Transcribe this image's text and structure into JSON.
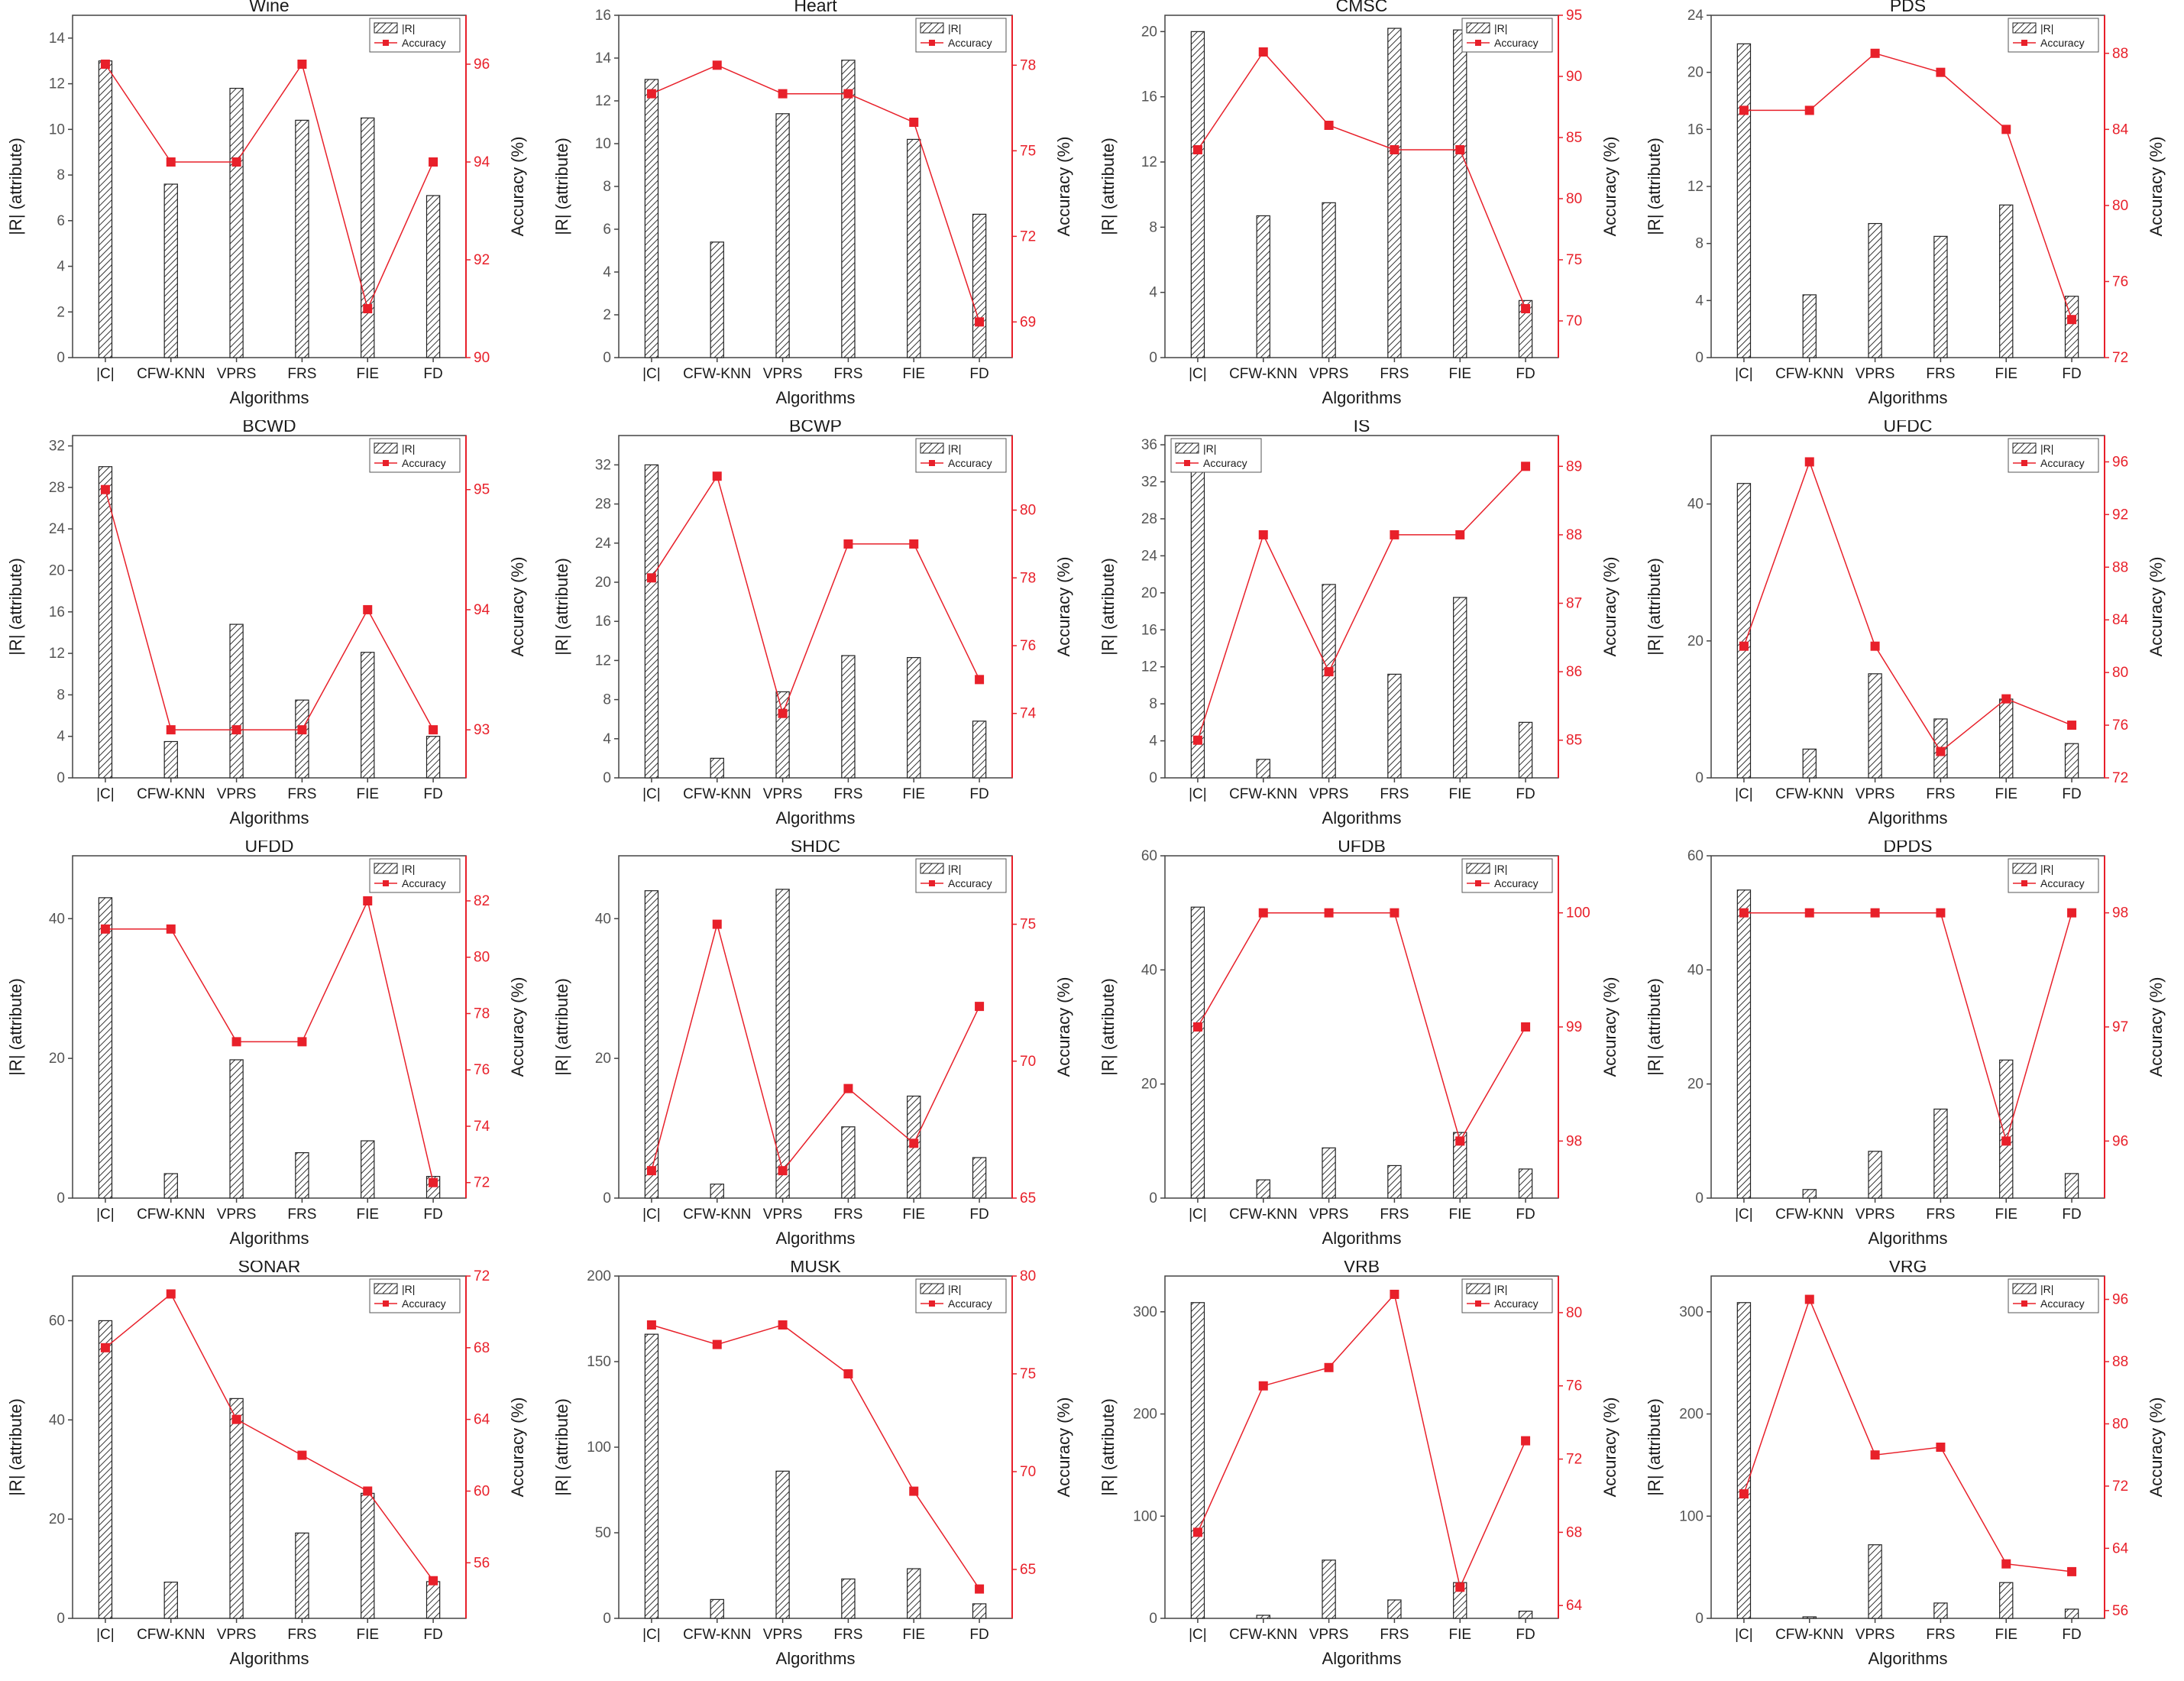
{
  "colors": {
    "bar_fill": "#d0d0d0",
    "bar_stroke": "#222222",
    "accuracy": "#e8202a",
    "axis": "#444444",
    "text": "#1a1a1a"
  },
  "common": {
    "categories": [
      "|C|",
      "CFW-KNN",
      "VPRS",
      "FRS",
      "FIE",
      "FD"
    ],
    "xlabel": "Algorithms",
    "ylabel_left": "|R| (attribute)",
    "ylabel_right": "Accuracy (%)",
    "legend_bar": "|R|",
    "legend_line": "Accuracy"
  },
  "chart_data": [
    {
      "type": "bar+line",
      "title": "Wine",
      "categories": [
        "|C|",
        "CFW-KNN",
        "VPRS",
        "FRS",
        "FIE",
        "FD"
      ],
      "series": [
        {
          "name": "|R|",
          "values": [
            13,
            7.6,
            11.8,
            10.4,
            10.5,
            7.1
          ]
        },
        {
          "name": "Accuracy",
          "values": [
            96,
            94,
            94,
            96,
            91,
            94
          ]
        }
      ],
      "ylim_left": [
        0,
        15
      ],
      "yticks_left": [
        0,
        2,
        4,
        6,
        8,
        10,
        12,
        14
      ],
      "ylim_right": [
        90,
        97
      ],
      "yticks_right": [
        90,
        92,
        94,
        96
      ],
      "legend": "top-right"
    },
    {
      "type": "bar+line",
      "title": "Heart",
      "categories": [
        "|C|",
        "CFW-KNN",
        "VPRS",
        "FRS",
        "FIE",
        "FD"
      ],
      "series": [
        {
          "name": "|R|",
          "values": [
            13,
            5.4,
            11.4,
            13.9,
            10.2,
            6.7
          ]
        },
        {
          "name": "Accuracy",
          "values": [
            77,
            78,
            77,
            77,
            76,
            69
          ]
        }
      ],
      "ylim_left": [
        0,
        16
      ],
      "yticks_left": [
        0,
        2,
        4,
        6,
        8,
        10,
        12,
        14,
        16
      ],
      "ylim_right": [
        67.75,
        79.75
      ],
      "yticks_right": [
        69,
        72,
        75,
        78
      ],
      "legend": "top-right"
    },
    {
      "type": "bar+line",
      "title": "CMSC",
      "categories": [
        "|C|",
        "CFW-KNN",
        "VPRS",
        "FRS",
        "FIE",
        "FD"
      ],
      "series": [
        {
          "name": "|R|",
          "values": [
            20,
            8.7,
            9.5,
            20.2,
            20.1,
            3.5
          ]
        },
        {
          "name": "Accuracy",
          "values": [
            84,
            92,
            86,
            84,
            84,
            71
          ]
        }
      ],
      "ylim_left": [
        0,
        21
      ],
      "yticks_left": [
        0,
        4,
        8,
        12,
        16,
        20
      ],
      "ylim_right": [
        67,
        95
      ],
      "yticks_right": [
        70,
        75,
        80,
        85,
        90,
        95
      ],
      "legend": "top-right"
    },
    {
      "type": "bar+line",
      "title": "PDS",
      "categories": [
        "|C|",
        "CFW-KNN",
        "VPRS",
        "FRS",
        "FIE",
        "FD"
      ],
      "series": [
        {
          "name": "|R|",
          "values": [
            22,
            4.4,
            9.4,
            8.5,
            10.7,
            4.3
          ]
        },
        {
          "name": "Accuracy",
          "values": [
            85,
            85,
            88,
            87,
            84,
            74
          ]
        }
      ],
      "ylim_left": [
        0,
        24
      ],
      "yticks_left": [
        0,
        4,
        8,
        12,
        16,
        20,
        24
      ],
      "ylim_right": [
        72,
        90
      ],
      "yticks_right": [
        72,
        76,
        80,
        84,
        88
      ],
      "legend": "top-right"
    },
    {
      "type": "bar+line",
      "title": "BCWD",
      "categories": [
        "|C|",
        "CFW-KNN",
        "VPRS",
        "FRS",
        "FIE",
        "FD"
      ],
      "series": [
        {
          "name": "|R|",
          "values": [
            30,
            3.5,
            14.8,
            7.5,
            12.1,
            4
          ]
        },
        {
          "name": "Accuracy",
          "values": [
            95,
            93,
            93,
            93,
            94,
            93
          ]
        }
      ],
      "ylim_left": [
        0,
        33
      ],
      "yticks_left": [
        0,
        4,
        8,
        12,
        16,
        20,
        24,
        28,
        32
      ],
      "ylim_right": [
        92.6,
        95.45
      ],
      "yticks_right": [
        93,
        94,
        95
      ],
      "legend": "top-right"
    },
    {
      "type": "bar+line",
      "title": "BCWP",
      "categories": [
        "|C|",
        "CFW-KNN",
        "VPRS",
        "FRS",
        "FIE",
        "FD"
      ],
      "series": [
        {
          "name": "|R|",
          "values": [
            32,
            2,
            8.8,
            12.5,
            12.3,
            5.8
          ]
        },
        {
          "name": "Accuracy",
          "values": [
            78,
            81,
            74,
            79,
            79,
            75
          ]
        }
      ],
      "ylim_left": [
        0,
        35
      ],
      "yticks_left": [
        0,
        4,
        8,
        12,
        16,
        20,
        24,
        28,
        32
      ],
      "ylim_right": [
        72.1,
        82.2
      ],
      "yticks_right": [
        74,
        76,
        78,
        80
      ],
      "legend": "top-right"
    },
    {
      "type": "bar+line",
      "title": "IS",
      "categories": [
        "|C|",
        "CFW-KNN",
        "VPRS",
        "FRS",
        "FIE",
        "FD"
      ],
      "series": [
        {
          "name": "|R|",
          "values": [
            34,
            2,
            20.9,
            11.2,
            19.5,
            6
          ]
        },
        {
          "name": "Accuracy",
          "values": [
            85,
            88,
            86,
            88,
            88,
            89
          ]
        }
      ],
      "ylim_left": [
        0,
        37
      ],
      "yticks_left": [
        0,
        4,
        8,
        12,
        16,
        20,
        24,
        28,
        32,
        36
      ],
      "ylim_right": [
        84.45,
        89.45
      ],
      "yticks_right": [
        85,
        86,
        87,
        88,
        89
      ],
      "legend": "top-left"
    },
    {
      "type": "bar+line",
      "title": "UFDC",
      "categories": [
        "|C|",
        "CFW-KNN",
        "VPRS",
        "FRS",
        "FIE",
        "FD"
      ],
      "series": [
        {
          "name": "|R|",
          "values": [
            43,
            4.2,
            15.2,
            8.6,
            11.5,
            5
          ]
        },
        {
          "name": "Accuracy",
          "values": [
            82,
            96,
            82,
            74,
            78,
            76
          ]
        }
      ],
      "ylim_left": [
        0,
        50
      ],
      "yticks_left": [
        0,
        20,
        40
      ],
      "ylim_right": [
        72,
        98
      ],
      "yticks_right": [
        72,
        76,
        80,
        84,
        88,
        92,
        96
      ],
      "legend": "top-right"
    },
    {
      "type": "bar+line",
      "title": "UFDD",
      "categories": [
        "|C|",
        "CFW-KNN",
        "VPRS",
        "FRS",
        "FIE",
        "FD"
      ],
      "series": [
        {
          "name": "|R|",
          "values": [
            43,
            3.5,
            19.8,
            6.5,
            8.2,
            3.1
          ]
        },
        {
          "name": "Accuracy",
          "values": [
            81,
            81,
            77,
            77,
            82,
            72
          ]
        }
      ],
      "ylim_left": [
        0,
        49
      ],
      "yticks_left": [
        0,
        20,
        40
      ],
      "ylim_right": [
        71.45,
        83.6
      ],
      "yticks_right": [
        72,
        74,
        76,
        78,
        80,
        82
      ],
      "legend": "top-right"
    },
    {
      "type": "bar+line",
      "title": "SHDC",
      "categories": [
        "|C|",
        "CFW-KNN",
        "VPRS",
        "FRS",
        "FIE",
        "FD"
      ],
      "series": [
        {
          "name": "|R|",
          "values": [
            44,
            2,
            44.2,
            10.2,
            14.6,
            5.8
          ]
        },
        {
          "name": "Accuracy",
          "values": [
            66,
            75,
            66,
            69,
            67,
            72
          ]
        }
      ],
      "ylim_left": [
        0,
        49
      ],
      "yticks_left": [
        0,
        20,
        40
      ],
      "ylim_right": [
        65,
        77.5
      ],
      "yticks_right": [
        65,
        70,
        75
      ],
      "legend": "top-right"
    },
    {
      "type": "bar+line",
      "title": "UFDB",
      "categories": [
        "|C|",
        "CFW-KNN",
        "VPRS",
        "FRS",
        "FIE",
        "FD"
      ],
      "series": [
        {
          "name": "|R|",
          "values": [
            51,
            3.2,
            8.8,
            5.7,
            11.5,
            5.1
          ]
        },
        {
          "name": "Accuracy",
          "values": [
            99,
            100,
            100,
            100,
            98,
            99
          ]
        }
      ],
      "ylim_left": [
        0,
        60
      ],
      "yticks_left": [
        0,
        20,
        40,
        60
      ],
      "ylim_right": [
        97.5,
        100.5
      ],
      "yticks_right": [
        98,
        99,
        100
      ],
      "legend": "top-right"
    },
    {
      "type": "bar+line",
      "title": "DPDS",
      "categories": [
        "|C|",
        "CFW-KNN",
        "VPRS",
        "FRS",
        "FIE",
        "FD"
      ],
      "series": [
        {
          "name": "|R|",
          "values": [
            54,
            1.5,
            8.2,
            15.6,
            24.2,
            4.3
          ]
        },
        {
          "name": "Accuracy",
          "values": [
            98,
            98,
            98,
            98,
            96,
            98
          ]
        }
      ],
      "ylim_left": [
        0,
        60
      ],
      "yticks_left": [
        0,
        20,
        40,
        60
      ],
      "ylim_right": [
        95.5,
        98.5
      ],
      "yticks_right": [
        96,
        97,
        98
      ],
      "legend": "top-right"
    },
    {
      "type": "bar+line",
      "title": "SONAR",
      "categories": [
        "|C|",
        "CFW-KNN",
        "VPRS",
        "FRS",
        "FIE",
        "FD"
      ],
      "series": [
        {
          "name": "|R|",
          "values": [
            60,
            7.3,
            44.3,
            17.2,
            25.2,
            7.4
          ]
        },
        {
          "name": "Accuracy",
          "values": [
            68,
            71,
            64,
            62,
            60,
            55
          ]
        }
      ],
      "ylim_left": [
        0,
        69
      ],
      "yticks_left": [
        0,
        20,
        40,
        60
      ],
      "ylim_right": [
        52.9,
        72
      ],
      "yticks_right": [
        56,
        60,
        64,
        68,
        72
      ],
      "legend": "top-right"
    },
    {
      "type": "bar+line",
      "title": "MUSK",
      "categories": [
        "|C|",
        "CFW-KNN",
        "VPRS",
        "FRS",
        "FIE",
        "FD"
      ],
      "series": [
        {
          "name": "|R|",
          "values": [
            166,
            11,
            86,
            23,
            29,
            8.5
          ]
        },
        {
          "name": "Accuracy",
          "values": [
            77.5,
            76.5,
            77.5,
            75,
            69,
            64
          ]
        }
      ],
      "ylim_left": [
        0,
        200
      ],
      "yticks_left": [
        0,
        50,
        100,
        150,
        200
      ],
      "ylim_right": [
        62.5,
        80
      ],
      "yticks_right": [
        65,
        70,
        75,
        80
      ],
      "legend": "top-right"
    },
    {
      "type": "bar+line",
      "title": "VRB",
      "categories": [
        "|C|",
        "CFW-KNN",
        "VPRS",
        "FRS",
        "FIE",
        "FD"
      ],
      "series": [
        {
          "name": "|R|",
          "values": [
            309,
            3,
            57,
            18,
            35,
            7
          ]
        },
        {
          "name": "Accuracy",
          "values": [
            68,
            76,
            77,
            81,
            65,
            73
          ]
        }
      ],
      "ylim_left": [
        0,
        335
      ],
      "yticks_left": [
        0,
        100,
        200,
        300
      ],
      "ylim_right": [
        63.3,
        82
      ],
      "yticks_right": [
        64,
        68,
        72,
        76,
        80
      ],
      "legend": "top-right"
    },
    {
      "type": "bar+line",
      "title": "VRG",
      "categories": [
        "|C|",
        "CFW-KNN",
        "VPRS",
        "FRS",
        "FIE",
        "FD"
      ],
      "series": [
        {
          "name": "|R|",
          "values": [
            309,
            1.5,
            72,
            15,
            35,
            9
          ]
        },
        {
          "name": "Accuracy",
          "values": [
            71,
            96,
            76,
            77,
            62,
            61
          ]
        }
      ],
      "ylim_left": [
        0,
        335
      ],
      "yticks_left": [
        0,
        100,
        200,
        300
      ],
      "ylim_right": [
        55,
        99
      ],
      "yticks_right": [
        56,
        64,
        72,
        80,
        88,
        96
      ],
      "legend": "top-right"
    }
  ]
}
